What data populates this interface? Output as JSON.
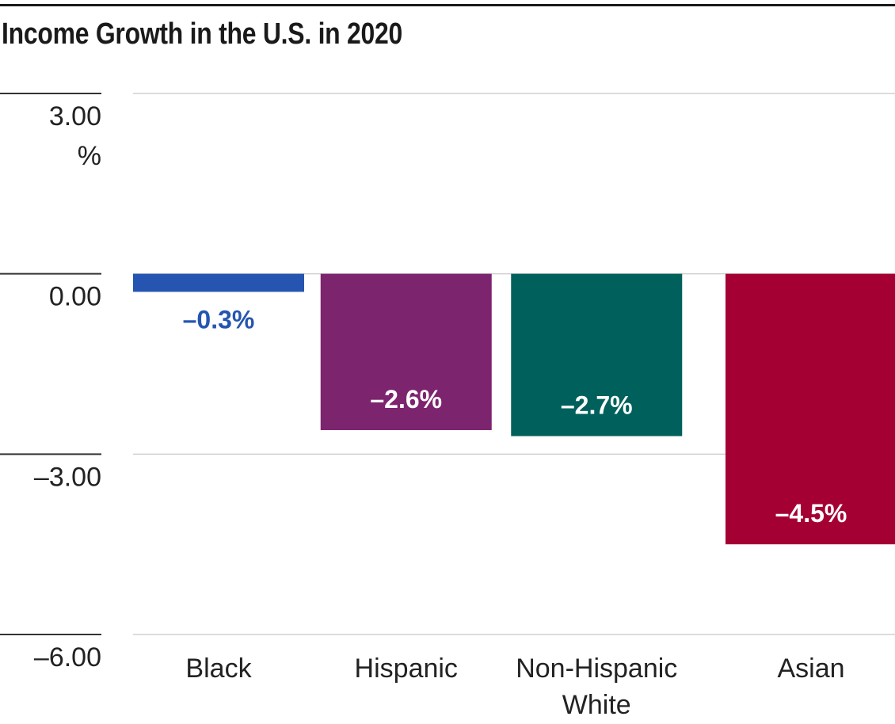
{
  "title": "Income Growth in the U.S. in 2020",
  "chart_data": {
    "type": "bar",
    "title": "Income Growth in the U.S. in 2020",
    "categories": [
      [
        "Black"
      ],
      [
        "Hispanic"
      ],
      [
        "Non-Hispanic",
        "White"
      ],
      [
        "Asian"
      ]
    ],
    "values": [
      -0.3,
      -2.6,
      -2.7,
      -4.5
    ],
    "value_labels": [
      "–0.3%",
      "–2.6%",
      "–2.7%",
      "–4.5%"
    ],
    "colors": [
      "#2555b0",
      "#7d246e",
      "#00605c",
      "#a50034"
    ],
    "label_colors": [
      "#2555b0",
      "#ffffff",
      "#ffffff",
      "#ffffff"
    ],
    "ylim": [
      -6,
      3
    ],
    "yticks": [
      {
        "value": 3,
        "lines": [
          "3.00",
          "%"
        ]
      },
      {
        "value": 0,
        "lines": [
          "0.00"
        ]
      },
      {
        "value": -3,
        "lines": [
          "–3.00"
        ]
      },
      {
        "value": -6,
        "lines": [
          "–6.00"
        ]
      }
    ],
    "grid": true,
    "legend": "none"
  }
}
